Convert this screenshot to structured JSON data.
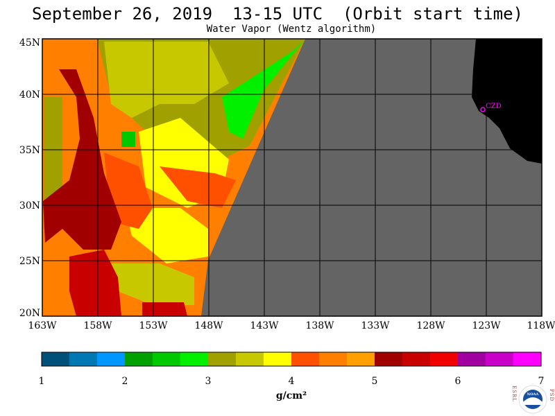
{
  "title": "September 26, 2019  13-15 UTC  (Orbit start time)",
  "subtitle": "Water Vapor (Wentz algorithm)",
  "map": {
    "lat_labels": [
      "45N",
      "40N",
      "35N",
      "30N",
      "25N",
      "20N"
    ],
    "lon_labels": [
      "163W",
      "158W",
      "153W",
      "148W",
      "143W",
      "138W",
      "133W",
      "128W",
      "123W",
      "118W"
    ],
    "station_label": "CZD",
    "colors": {
      "ocean_nodata": "#646464",
      "land": "#000000",
      "station": "#ff00ff",
      "grid": "#000000"
    }
  },
  "colorbar": {
    "tick_labels": [
      "1",
      "2",
      "3",
      "4",
      "5",
      "6",
      "7"
    ],
    "unit": "g/cm²",
    "colors": [
      "#00507a",
      "#0078b4",
      "#0096ff",
      "#00a000",
      "#00c800",
      "#00f000",
      "#a0a000",
      "#c8c800",
      "#ffff00",
      "#ff5000",
      "#ff8000",
      "#ffa000",
      "#a00000",
      "#c80000",
      "#f00000",
      "#a000a0",
      "#c800c8",
      "#ff00ff"
    ]
  },
  "logo": {
    "left_letters": "ESRL",
    "right_letters": "PSD",
    "center_text": "NOAA"
  }
}
